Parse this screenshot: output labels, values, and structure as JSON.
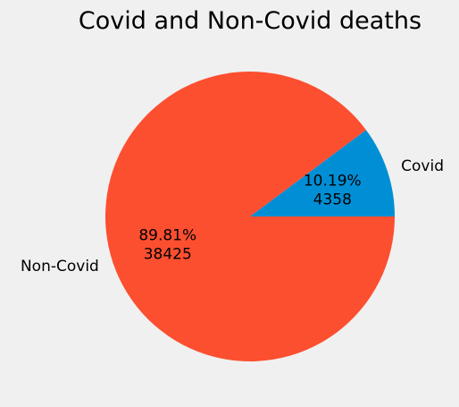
{
  "chart_data": {
    "type": "pie",
    "title": "Covid and Non-Covid deaths",
    "categories": [
      "Covid",
      "Non-Covid"
    ],
    "values": [
      4358,
      38425
    ],
    "percentages": [
      "10.19%",
      "89.81%"
    ],
    "colors": [
      "#008fd5",
      "#fc4f30"
    ],
    "start_angle_deg": 0,
    "direction": "counterclockwise",
    "legend": "none"
  }
}
